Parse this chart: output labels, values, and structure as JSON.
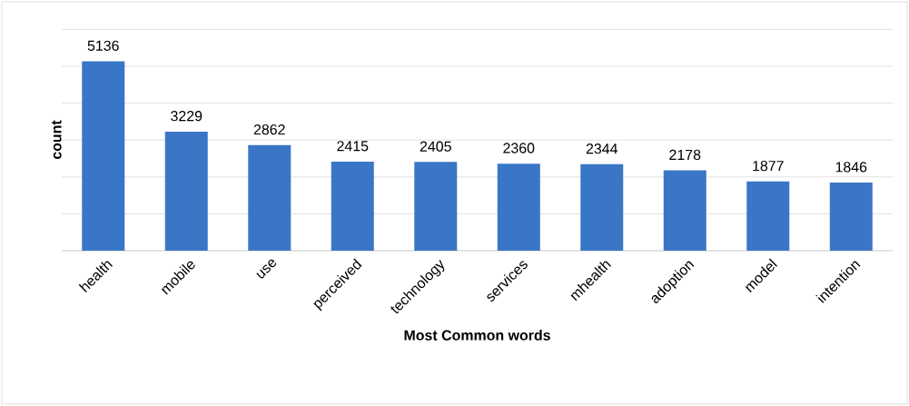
{
  "chart_data": {
    "type": "bar",
    "xlabel": "Most Common words",
    "ylabel": "count",
    "categories": [
      "health",
      "mobile",
      "use",
      "perceived",
      "technology",
      "services",
      "mhealth",
      "adoption",
      "model",
      "intention"
    ],
    "values": [
      5136,
      3229,
      2862,
      2415,
      2405,
      2360,
      2344,
      2178,
      1877,
      1846
    ],
    "color": "#3a76c6",
    "tick_labels": "x",
    "grid": "y",
    "data_labels": true
  }
}
